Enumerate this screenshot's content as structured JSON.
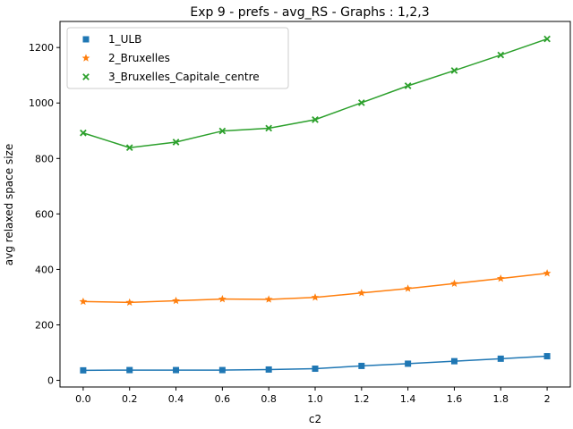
{
  "chart_data": {
    "type": "line",
    "title": "Exp 9 - prefs - avg_RS - Graphs : 1,2,3",
    "xlabel": "c2",
    "ylabel": "avg relaxed space size",
    "x": [
      0.0,
      0.2,
      0.4,
      0.6,
      0.8,
      1.0,
      1.2,
      1.4,
      1.6,
      1.8,
      2.0
    ],
    "xtick_labels": [
      "0.0",
      "0.2",
      "0.4",
      "0.6",
      "0.8",
      "1.0",
      "1.2",
      "1.4",
      "1.6",
      "1.8",
      "2"
    ],
    "yticks": [
      0,
      200,
      400,
      600,
      800,
      1000,
      1200
    ],
    "ylim": [
      -24,
      1294
    ],
    "xlim": [
      -0.1,
      2.1
    ],
    "grid": false,
    "legend_position": "top-left",
    "series": [
      {
        "name": "1_ULB",
        "color": "#1f77b4",
        "marker": "square",
        "values": [
          36,
          37,
          37,
          37,
          39,
          42,
          52,
          60,
          69,
          78,
          87
        ]
      },
      {
        "name": "2_Bruxelles",
        "color": "#ff7f0e",
        "marker": "star",
        "values": [
          284,
          281,
          287,
          293,
          292,
          299,
          315,
          331,
          349,
          367,
          386
        ]
      },
      {
        "name": "3_Bruxelles_Capitale_centre",
        "color": "#2ca02c",
        "marker": "x",
        "values": [
          892,
          839,
          859,
          899,
          909,
          940,
          1001,
          1062,
          1117,
          1173,
          1231
        ]
      }
    ]
  }
}
